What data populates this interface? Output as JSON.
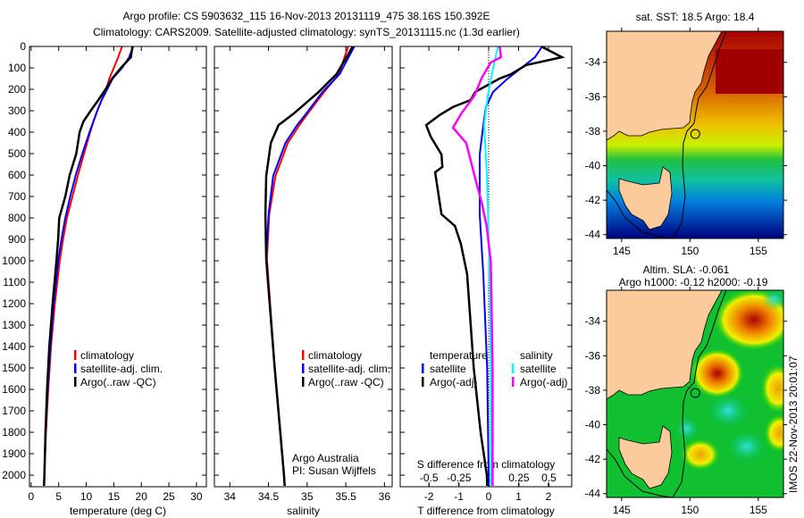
{
  "header": {
    "title_line1": "Argo profile: CS 5903632_115 16-Nov-2013 20131119_475 38.16S 150.392E",
    "title_line2": "Climatology: CARS2009. Satellite-adjusted climatology: synTS_20131115.nc (1.3d earlier)"
  },
  "colors": {
    "climatology": "#ff0000",
    "satellite": "#0000ff",
    "argo": "#000000",
    "sal_satellite": "#00ffff",
    "sal_argo": "#ff00ff"
  },
  "chart_data": [
    {
      "type": "line",
      "title": "",
      "xlabel": "temperature (deg C)",
      "ylabel": "",
      "xlim": [
        -0.3,
        31.8
      ],
      "ylim": [
        2054,
        0
      ],
      "xticks": [
        "0",
        "5",
        "10",
        "15",
        "20",
        "25",
        "30"
      ],
      "yticks": [
        "0",
        "100",
        "200",
        "300",
        "400",
        "500",
        "600",
        "700",
        "800",
        "900",
        "1000",
        "1100",
        "1200",
        "1300",
        "1400",
        "1500",
        "1600",
        "1700",
        "1800",
        "1900",
        "2000"
      ],
      "legend": [
        "climatology",
        "satellite-adj. clim.",
        "Argo(..raw -QC)"
      ],
      "depth": [
        0,
        50,
        100,
        150,
        200,
        250,
        300,
        350,
        400,
        500,
        600,
        700,
        800,
        900,
        1000,
        1200,
        1400,
        1600,
        1800,
        2000,
        2050
      ],
      "series": [
        {
          "name": "climatology",
          "values": [
            16.5,
            15.8,
            15.0,
            14.2,
            13.6,
            12.8,
            12.0,
            11.3,
            10.7,
            9.6,
            8.5,
            7.5,
            6.5,
            5.8,
            5.2,
            4.3,
            3.6,
            3.1,
            2.7,
            2.4,
            2.35
          ]
        },
        {
          "name": "satellite-adj. clim.",
          "values": [
            18.5,
            17.8,
            16.5,
            14.8,
            13.8,
            12.8,
            12.0,
            11.3,
            10.6,
            9.3,
            8.1,
            7.1,
            6.2,
            5.5,
            4.9,
            4.1,
            3.5,
            3.0,
            2.6,
            2.4,
            2.35
          ]
        },
        {
          "name": "Argo(..raw -QC)",
          "values": [
            18.4,
            18.1,
            16.3,
            14.7,
            13.5,
            12.2,
            10.8,
            9.5,
            8.8,
            8.2,
            7.0,
            6.2,
            5.1,
            4.9,
            4.6,
            3.9,
            3.3,
            2.9,
            2.6,
            2.4,
            2.35
          ]
        }
      ]
    },
    {
      "type": "line",
      "xlabel": "salinity",
      "xlim": [
        33.8,
        36.1
      ],
      "ylim": [
        2054,
        0
      ],
      "xticks": [
        "34",
        "34.5",
        "35",
        "35.5",
        "36"
      ],
      "legend": [
        "climatology",
        "satellite-adj. clim.",
        "Argo(..raw -QC)"
      ],
      "annotation": [
        "Argo Australia",
        "PI: Susan Wijffels"
      ],
      "depth": [
        0,
        129,
        212,
        312,
        367,
        450,
        604,
        783,
        992,
        1500,
        2000,
        2050
      ],
      "series": [
        {
          "name": "climatology",
          "values": [
            35.53,
            35.41,
            35.22,
            35.01,
            34.9,
            34.75,
            34.59,
            34.51,
            34.48,
            34.58,
            34.7,
            34.71
          ]
        },
        {
          "name": "satellite-adj. clim.",
          "values": [
            35.61,
            35.42,
            35.2,
            34.99,
            34.87,
            34.72,
            34.56,
            34.5,
            34.47,
            34.58,
            34.7,
            34.71
          ]
        },
        {
          "name": "Argo(..raw -QC)",
          "values": [
            35.59,
            35.38,
            35.15,
            34.83,
            34.63,
            34.53,
            34.47,
            34.46,
            34.47,
            34.58,
            34.7,
            34.71
          ]
        }
      ]
    },
    {
      "type": "line",
      "xlabel": "T difference from climatology",
      "x2label": "S difference from climatology",
      "xlim": [
        -2.96,
        2.78
      ],
      "x2lim": [
        -0.74,
        0.69
      ],
      "ylim": [
        2054,
        0
      ],
      "xticks": [
        "-2",
        "-1",
        "0",
        "1",
        "2"
      ],
      "x2ticks": [
        "-0.5",
        "-0.25",
        "0",
        "0.25",
        "0.5"
      ],
      "legend_headers": [
        "temperature",
        "salinity"
      ],
      "legend": [
        "satellite",
        "Argo(-adj)",
        "satellite",
        "Argo(-adj)"
      ],
      "series": [
        {
          "name": "T satellite",
          "axis": "T",
          "depth": [
            0,
            50,
            154,
            212,
            283,
            367,
            504,
            783,
            1062,
            1500,
            2000,
            2050
          ],
          "values": [
            1.79,
            1.55,
            0.6,
            0.15,
            -0.09,
            -0.18,
            -0.3,
            -0.3,
            -0.18,
            -0.05,
            0.0,
            0.0
          ]
        },
        {
          "name": "T Argo(-adj)",
          "axis": "T",
          "depth": [
            0,
            50,
            87,
            129,
            150,
            212,
            250,
            283,
            320,
            367,
            421,
            504,
            562,
            587,
            783,
            837,
            921,
            1062,
            1500,
            1800,
            2000,
            2050
          ],
          "values": [
            1.76,
            2.45,
            1.25,
            0.75,
            0.36,
            -0.45,
            -0.6,
            -1.2,
            -1.64,
            -2.09,
            -1.94,
            -1.58,
            -1.55,
            -1.79,
            -1.58,
            -1.13,
            -0.93,
            -0.72,
            -0.5,
            -0.27,
            -0.06,
            -0.05
          ]
        },
        {
          "name": "S satellite",
          "axis": "S",
          "depth": [
            0,
            87,
            229,
            367,
            625,
            1062,
            1500,
            2000,
            2050
          ],
          "values": [
            0.075,
            0.04,
            -0.01,
            -0.04,
            -0.015,
            0.005,
            0.015,
            0.015,
            0.015
          ]
        },
        {
          "name": "S Argo(-adj)",
          "axis": "S",
          "depth": [
            0,
            50,
            75,
            146,
            229,
            312,
            379,
            450,
            625,
            729,
            837,
            1004,
            1500,
            2000,
            2050
          ],
          "values": [
            0.09,
            0.1,
            0.015,
            -0.06,
            -0.12,
            -0.23,
            -0.3,
            -0.19,
            -0.11,
            -0.06,
            -0.02,
            0.015,
            0.03,
            0.03,
            0.03
          ]
        }
      ]
    }
  ],
  "maps": {
    "sst": {
      "title": "sat. SST: 18.5 Argo: 18.4"
    },
    "sla": {
      "title_line1": "Altim. SLA: -0.061",
      "title_line2": "Argo h1000: -0.12 h2000: -0.19"
    },
    "lat_ticks": [
      "-34",
      "-36",
      "-38",
      "-40",
      "-42",
      "-44"
    ],
    "lon_ticks": [
      "145",
      "150",
      "155"
    ],
    "argo_position": {
      "lat": -38.16,
      "lon": 150.392
    },
    "stamp": "IMOS 22-Nov-2013 20:01:07"
  }
}
